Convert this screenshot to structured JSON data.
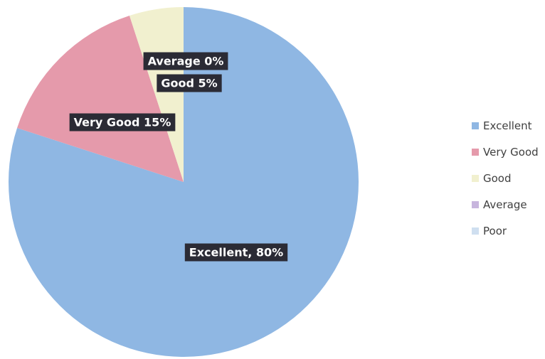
{
  "chart_data": {
    "type": "pie",
    "categories": [
      "Excellent",
      "Very Good",
      "Good",
      "Average",
      "Poor"
    ],
    "values": [
      80,
      15,
      5,
      0,
      0
    ],
    "colors": [
      "#8fb7e3",
      "#e59aab",
      "#f1f0cf",
      "#c7b5dd",
      "#cfdff0"
    ],
    "slice_labels": [
      "Excellent, 80%",
      "Very Good  15%",
      "Good  5%",
      "Average 0%",
      ""
    ],
    "legend": [
      "Excellent",
      "Very Good",
      "Good",
      "Average",
      "Poor"
    ],
    "legend_position": "right",
    "start_angle": "12 o'clock",
    "direction": "clockwise"
  }
}
